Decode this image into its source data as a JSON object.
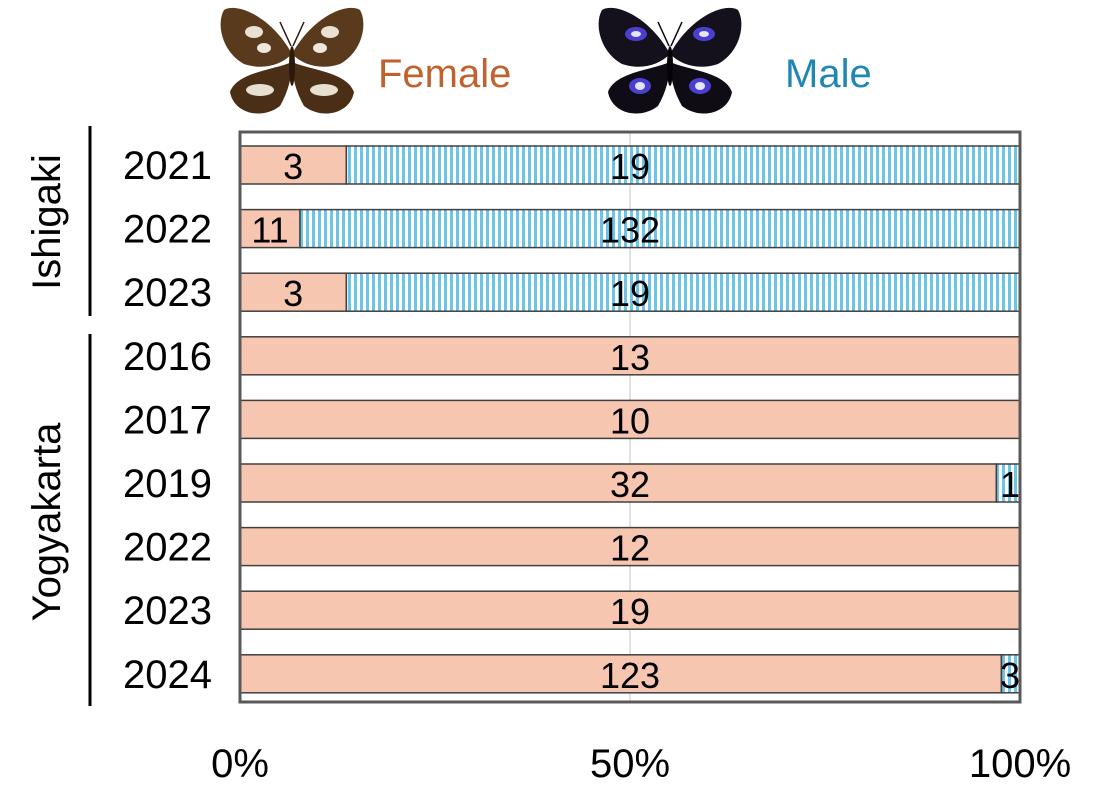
{
  "chart_data": {
    "type": "bar",
    "orientation": "horizontal",
    "stacked": true,
    "normalized": true,
    "xlim": [
      0,
      100
    ],
    "x_ticks": [
      "0%",
      "50%",
      "100%"
    ],
    "grid": "vertical line at 50%",
    "legend": {
      "placement": "top",
      "entries": [
        "Female",
        "Male"
      ],
      "icons": [
        "female-butterfly-icon",
        "male-butterfly-icon"
      ]
    },
    "groups": [
      {
        "label": "Ishigaki",
        "categories": [
          "2021",
          "2022",
          "2023"
        ]
      },
      {
        "label": "Yogyakarta",
        "categories": [
          "2016",
          "2017",
          "2019",
          "2022",
          "2023",
          "2024"
        ]
      }
    ],
    "categories": [
      "2021",
      "2022",
      "2023",
      "2016",
      "2017",
      "2019",
      "2022",
      "2023",
      "2024"
    ],
    "series": [
      {
        "name": "Female",
        "values": [
          3,
          11,
          3,
          13,
          10,
          32,
          12,
          19,
          123
        ],
        "color": "#f7c6b0",
        "pattern": "solid"
      },
      {
        "name": "Male",
        "values": [
          19,
          132,
          19,
          0,
          0,
          1,
          0,
          0,
          3
        ],
        "color": "#6cc4e8",
        "pattern": "vertical-stripes"
      }
    ]
  }
}
